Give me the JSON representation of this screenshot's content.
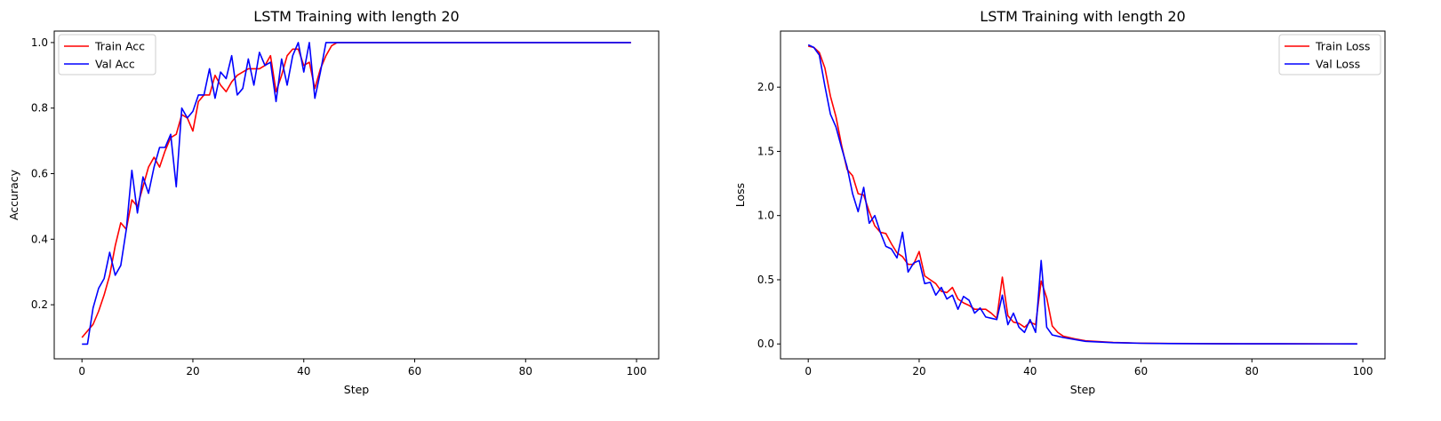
{
  "chart_data": [
    {
      "type": "line",
      "title": "LSTM Training with length 20",
      "xlabel": "Step",
      "ylabel": "Accuracy",
      "xlim": [
        -5,
        104
      ],
      "ylim": [
        0.035,
        1.035
      ],
      "xticks": [
        0,
        20,
        40,
        60,
        80,
        100
      ],
      "yticks": [
        0.2,
        0.4,
        0.6,
        0.8,
        1.0
      ],
      "ytick_labels": [
        "0.2",
        "0.4",
        "0.6",
        "0.8",
        "1.0"
      ],
      "grid": false,
      "legend": "top-left",
      "series": [
        {
          "name": "Train Acc",
          "color": "#ff0000",
          "x": [
            0,
            1,
            2,
            3,
            4,
            5,
            6,
            7,
            8,
            9,
            10,
            11,
            12,
            13,
            14,
            15,
            16,
            17,
            18,
            19,
            20,
            21,
            22,
            23,
            24,
            25,
            26,
            27,
            28,
            29,
            30,
            31,
            32,
            33,
            34,
            35,
            36,
            37,
            38,
            39,
            40,
            41,
            42,
            43,
            44,
            45,
            46,
            47,
            48,
            50,
            55,
            60,
            65,
            70,
            75,
            80,
            85,
            90,
            95,
            99
          ],
          "values": [
            0.1,
            0.12,
            0.14,
            0.18,
            0.23,
            0.29,
            0.38,
            0.45,
            0.43,
            0.52,
            0.5,
            0.56,
            0.62,
            0.65,
            0.62,
            0.67,
            0.71,
            0.72,
            0.78,
            0.77,
            0.73,
            0.82,
            0.84,
            0.84,
            0.9,
            0.87,
            0.85,
            0.88,
            0.9,
            0.91,
            0.92,
            0.92,
            0.92,
            0.93,
            0.96,
            0.85,
            0.9,
            0.96,
            0.98,
            0.98,
            0.93,
            0.94,
            0.86,
            0.92,
            0.96,
            0.99,
            1.0,
            1.0,
            1.0,
            1.0,
            1.0,
            1.0,
            1.0,
            1.0,
            1.0,
            1.0,
            1.0,
            1.0,
            1.0,
            1.0
          ]
        },
        {
          "name": "Val Acc",
          "color": "#0000ff",
          "x": [
            0,
            1,
            2,
            3,
            4,
            5,
            6,
            7,
            8,
            9,
            10,
            11,
            12,
            13,
            14,
            15,
            16,
            17,
            18,
            19,
            20,
            21,
            22,
            23,
            24,
            25,
            26,
            27,
            28,
            29,
            30,
            31,
            32,
            33,
            34,
            35,
            36,
            37,
            38,
            39,
            40,
            41,
            42,
            43,
            44,
            45,
            46,
            47,
            48,
            50,
            55,
            60,
            65,
            70,
            75,
            80,
            85,
            90,
            95,
            99
          ],
          "values": [
            0.08,
            0.08,
            0.19,
            0.25,
            0.28,
            0.36,
            0.29,
            0.32,
            0.43,
            0.61,
            0.48,
            0.59,
            0.54,
            0.62,
            0.68,
            0.68,
            0.72,
            0.56,
            0.8,
            0.77,
            0.79,
            0.84,
            0.84,
            0.92,
            0.83,
            0.91,
            0.89,
            0.96,
            0.84,
            0.86,
            0.95,
            0.87,
            0.97,
            0.93,
            0.94,
            0.82,
            0.95,
            0.87,
            0.96,
            1.0,
            0.91,
            1.0,
            0.83,
            0.91,
            1.0,
            1.0,
            1.0,
            1.0,
            1.0,
            1.0,
            1.0,
            1.0,
            1.0,
            1.0,
            1.0,
            1.0,
            1.0,
            1.0,
            1.0,
            1.0
          ]
        }
      ]
    },
    {
      "type": "line",
      "title": "LSTM Training with length 20",
      "xlabel": "Step",
      "ylabel": "Loss",
      "xlim": [
        -5,
        104
      ],
      "ylim": [
        -0.116,
        2.437
      ],
      "xticks": [
        0,
        20,
        40,
        60,
        80,
        100
      ],
      "yticks": [
        0.0,
        0.5,
        1.0,
        1.5,
        2.0
      ],
      "ytick_labels": [
        "0.0",
        "0.5",
        "1.0",
        "1.5",
        "2.0"
      ],
      "grid": false,
      "legend": "top-right",
      "series": [
        {
          "name": "Train Loss",
          "color": "#ff0000",
          "x": [
            0,
            1,
            2,
            3,
            4,
            5,
            6,
            7,
            8,
            9,
            10,
            11,
            12,
            13,
            14,
            15,
            16,
            17,
            18,
            19,
            20,
            21,
            22,
            23,
            24,
            25,
            26,
            27,
            28,
            29,
            30,
            31,
            32,
            33,
            34,
            35,
            36,
            37,
            38,
            39,
            40,
            41,
            42,
            43,
            44,
            45,
            46,
            48,
            50,
            55,
            60,
            65,
            70,
            75,
            80,
            85,
            90,
            95,
            99
          ],
          "values": [
            2.32,
            2.31,
            2.27,
            2.15,
            1.93,
            1.77,
            1.55,
            1.36,
            1.31,
            1.17,
            1.16,
            1.03,
            0.92,
            0.87,
            0.86,
            0.78,
            0.71,
            0.68,
            0.62,
            0.62,
            0.72,
            0.53,
            0.5,
            0.47,
            0.41,
            0.4,
            0.44,
            0.35,
            0.32,
            0.3,
            0.27,
            0.27,
            0.27,
            0.24,
            0.2,
            0.52,
            0.22,
            0.17,
            0.16,
            0.13,
            0.17,
            0.15,
            0.49,
            0.36,
            0.14,
            0.09,
            0.06,
            0.04,
            0.025,
            0.012,
            0.006,
            0.004,
            0.003,
            0.002,
            0.0015,
            0.001,
            0.001,
            0.0008,
            0.0007
          ]
        },
        {
          "name": "Val Loss",
          "color": "#0000ff",
          "x": [
            0,
            1,
            2,
            3,
            4,
            5,
            6,
            7,
            8,
            9,
            10,
            11,
            12,
            13,
            14,
            15,
            16,
            17,
            18,
            19,
            20,
            21,
            22,
            23,
            24,
            25,
            26,
            27,
            28,
            29,
            30,
            31,
            32,
            33,
            34,
            35,
            36,
            37,
            38,
            39,
            40,
            41,
            42,
            43,
            44,
            45,
            46,
            48,
            50,
            55,
            60,
            65,
            70,
            75,
            80,
            85,
            90,
            95,
            99
          ],
          "values": [
            2.33,
            2.31,
            2.25,
            2.01,
            1.79,
            1.69,
            1.53,
            1.38,
            1.17,
            1.03,
            1.22,
            0.94,
            1.0,
            0.87,
            0.76,
            0.74,
            0.67,
            0.87,
            0.56,
            0.63,
            0.65,
            0.47,
            0.48,
            0.38,
            0.44,
            0.35,
            0.38,
            0.27,
            0.37,
            0.34,
            0.24,
            0.28,
            0.21,
            0.2,
            0.19,
            0.38,
            0.15,
            0.24,
            0.13,
            0.09,
            0.19,
            0.09,
            0.65,
            0.13,
            0.07,
            0.06,
            0.05,
            0.035,
            0.02,
            0.01,
            0.005,
            0.003,
            0.002,
            0.0015,
            0.001,
            0.001,
            0.0008,
            0.0007,
            0.0006
          ]
        }
      ]
    }
  ]
}
